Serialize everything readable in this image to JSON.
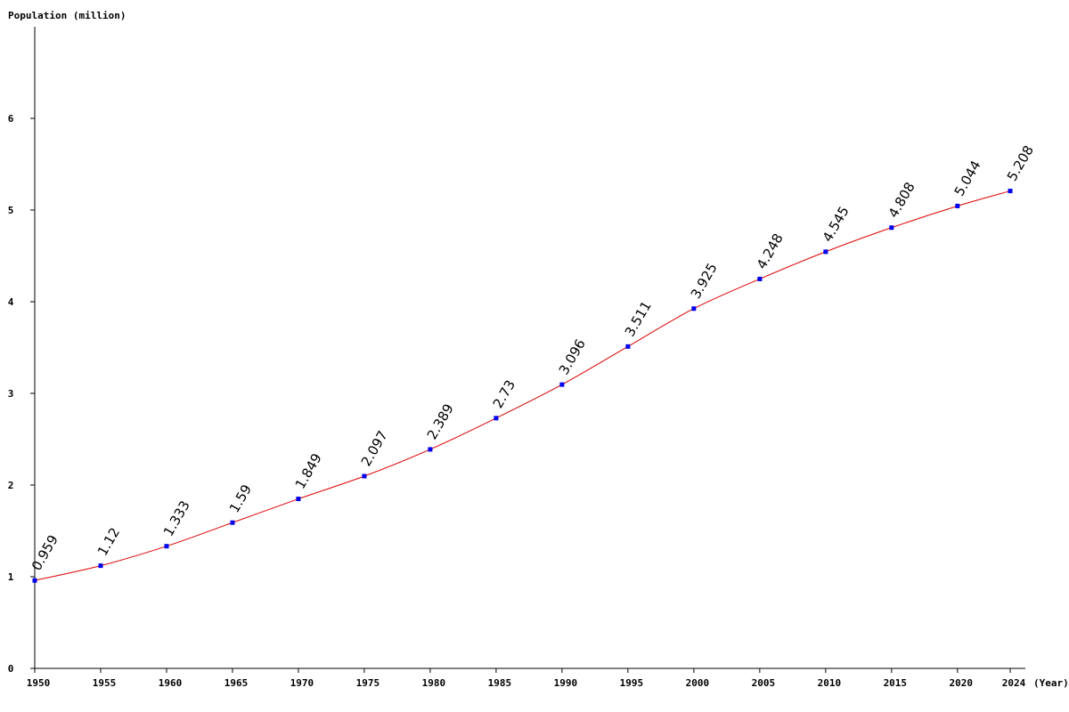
{
  "chart_data": {
    "type": "line",
    "ylabel": "Population (million)",
    "xlabel": "(Year)",
    "x": [
      1950,
      1955,
      1960,
      1965,
      1970,
      1975,
      1980,
      1985,
      1990,
      1995,
      2000,
      2005,
      2010,
      2015,
      2020,
      2024
    ],
    "x_tick_labels": [
      "1950",
      "1955",
      "1960",
      "1965",
      "1970",
      "1975",
      "1980",
      "1985",
      "1990",
      "1995",
      "2000",
      "2005",
      "2010",
      "2015",
      "2020",
      "2024"
    ],
    "values": [
      0.959,
      1.12,
      1.333,
      1.59,
      1.849,
      2.097,
      2.389,
      2.73,
      3.096,
      3.511,
      3.925,
      4.248,
      4.545,
      4.808,
      5.044,
      5.208
    ],
    "data_labels": [
      "0.959",
      "1.12",
      "1.333",
      "1.59",
      "1.849",
      "2.097",
      "2.389",
      "2.73",
      "3.096",
      "3.511",
      "3.925",
      "4.248",
      "4.545",
      "4.808",
      "5.044",
      "5.208"
    ],
    "y_ticks": [
      0,
      1,
      2,
      3,
      4,
      5,
      6
    ],
    "y_tick_labels": [
      "0",
      "1",
      "2",
      "3",
      "4",
      "5",
      "6"
    ],
    "xlim": [
      1950,
      2024
    ],
    "ylim": [
      0,
      7
    ],
    "grid": false,
    "legend": "none",
    "colors": {
      "line": "#dd0000",
      "marker": "#0000ee",
      "axis": "#000000"
    }
  }
}
